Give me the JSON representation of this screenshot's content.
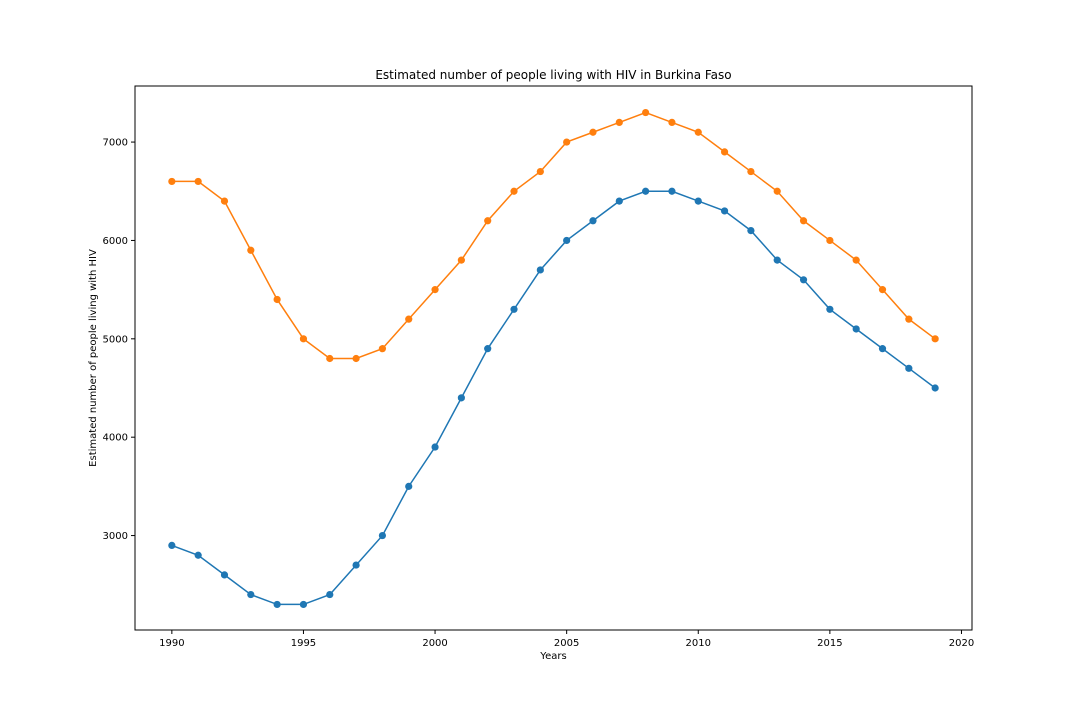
{
  "chart_data": {
    "type": "line",
    "title": "Estimated number of people living with HIV in Burkina Faso",
    "xlabel": "Years",
    "ylabel": "Estimated number of people living with HIV",
    "xlim": [
      1988.6,
      2020.4
    ],
    "ylim": [
      2040,
      7570
    ],
    "xticks": [
      1990,
      1995,
      2000,
      2005,
      2010,
      2015,
      2020
    ],
    "yticks": [
      3000,
      4000,
      5000,
      6000,
      7000
    ],
    "grid": false,
    "legend": "none",
    "x": [
      1990,
      1991,
      1992,
      1993,
      1994,
      1995,
      1996,
      1997,
      1998,
      1999,
      2000,
      2001,
      2002,
      2003,
      2004,
      2005,
      2006,
      2007,
      2008,
      2009,
      2010,
      2011,
      2012,
      2013,
      2014,
      2015,
      2016,
      2017,
      2018,
      2019
    ],
    "series": [
      {
        "color": "#1f77b4",
        "values": [
          2900,
          2800,
          2600,
          2400,
          2300,
          2300,
          2400,
          2700,
          3000,
          3500,
          3900,
          4400,
          4900,
          5300,
          5700,
          6000,
          6200,
          6400,
          6500,
          6500,
          6400,
          6300,
          6100,
          5800,
          5600,
          5300,
          5100,
          4900,
          4700,
          4500
        ]
      },
      {
        "color": "#ff7f0e",
        "values": [
          6600,
          6600,
          6400,
          5900,
          5400,
          5000,
          4800,
          4800,
          4900,
          5200,
          5500,
          5800,
          6200,
          6500,
          6700,
          7000,
          7100,
          7200,
          7300,
          7200,
          7100,
          6900,
          6700,
          6500,
          6200,
          6000,
          5800,
          5500,
          5200,
          5000
        ]
      }
    ]
  }
}
